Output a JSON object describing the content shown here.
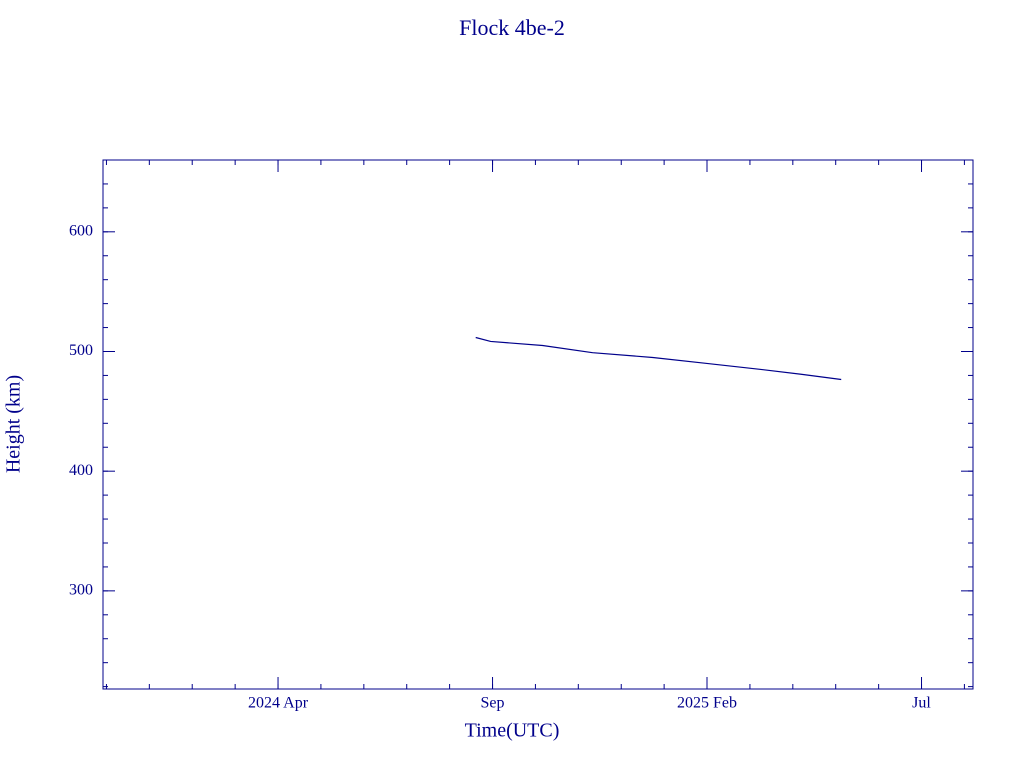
{
  "chart_data": {
    "type": "line",
    "title": "Flock 4be-2",
    "xlabel": "Time(UTC)",
    "ylabel": "Height (km)",
    "x": [
      2024.634,
      2024.663,
      2024.764,
      2024.861,
      2024.978,
      2025.083,
      2025.188,
      2025.266,
      2025.344
    ],
    "series": [
      {
        "name": "Flock 4be-2",
        "color": "#00008b",
        "values": [
          511.7,
          508.4,
          505,
          499,
          495,
          490,
          485,
          481,
          476.6
        ]
      }
    ],
    "xlim": [
      2023.91,
      2025.6
    ],
    "xticks": [
      {
        "value": 2024.25,
        "label": "2024 Apr"
      },
      {
        "value": 2024.6667,
        "label": "Sep"
      },
      {
        "value": 2025.0833,
        "label": "2025 Feb"
      },
      {
        "value": 2025.5,
        "label": "Jul"
      }
    ],
    "xminorticks": [
      2023.9167,
      2024,
      2024.0833,
      2024.1667,
      2024.25,
      2024.3333,
      2024.4167,
      2024.5,
      2024.5833,
      2024.6667,
      2024.75,
      2024.8333,
      2024.9167,
      2025,
      2025.0833,
      2025.1667,
      2025.25,
      2025.3333,
      2025.4167,
      2025.5,
      2025.5833
    ],
    "ylim": [
      218,
      660
    ],
    "yticks": [
      300,
      400,
      500,
      600
    ],
    "yminorticks": [
      220,
      240,
      260,
      280,
      300,
      320,
      340,
      360,
      380,
      400,
      420,
      440,
      460,
      480,
      500,
      520,
      540,
      560,
      580,
      600,
      620,
      640
    ],
    "axis_color": "#00008b"
  }
}
